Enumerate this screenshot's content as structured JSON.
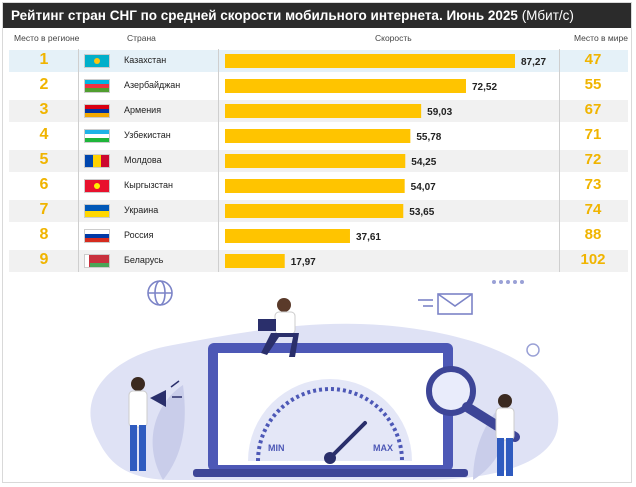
{
  "title": "Рейтинг стран СНГ по средней скорости мобильного интернета. Июнь 2025",
  "title_unit": "(Мбит/с)",
  "columns": {
    "region_rank": "Место в регионе",
    "country": "Страна",
    "speed": "Скорость",
    "world_rank": "Место в мире"
  },
  "rows": [
    {
      "rank": "1",
      "country": "Казахстан",
      "speed": "87,27",
      "world": "47",
      "flag": "kazakhstan"
    },
    {
      "rank": "2",
      "country": "Азербайджан",
      "speed": "72,52",
      "world": "55",
      "flag": "azerbaijan"
    },
    {
      "rank": "3",
      "country": "Армения",
      "speed": "59,03",
      "world": "67",
      "flag": "armenia"
    },
    {
      "rank": "4",
      "country": "Узбекистан",
      "speed": "55,78",
      "world": "71",
      "flag": "uzbekistan"
    },
    {
      "rank": "5",
      "country": "Молдова",
      "speed": "54,25",
      "world": "72",
      "flag": "moldova"
    },
    {
      "rank": "6",
      "country": "Кыргызстан",
      "speed": "54,07",
      "world": "73",
      "flag": "kyrgyzstan"
    },
    {
      "rank": "7",
      "country": "Украина",
      "speed": "53,65",
      "world": "74",
      "flag": "ukraine"
    },
    {
      "rank": "8",
      "country": "Россия",
      "speed": "37,61",
      "world": "88",
      "flag": "russia"
    },
    {
      "rank": "9",
      "country": "Беларусь",
      "speed": "17,97",
      "world": "102",
      "flag": "belarus"
    }
  ],
  "colors": {
    "bar": "#ffc400",
    "rank": "#f0b400",
    "title_bg": "#2b2b2b",
    "highlight_row": "#e5f1f8"
  },
  "illustration": {
    "gauge_min": "MIN",
    "gauge_max": "MAX"
  },
  "chart_data": {
    "type": "bar",
    "orientation": "horizontal",
    "title": "Рейтинг стран СНГ по средней скорости мобильного интернета. Июнь 2025 (Мбит/с)",
    "categories": [
      "Казахстан",
      "Азербайджан",
      "Армения",
      "Узбекистан",
      "Молдова",
      "Кыргызстан",
      "Украина",
      "Россия",
      "Беларусь"
    ],
    "values": [
      87.27,
      72.52,
      59.03,
      55.78,
      54.25,
      54.07,
      53.65,
      37.61,
      17.97
    ],
    "world_rank": [
      47,
      55,
      67,
      71,
      72,
      73,
      74,
      88,
      102
    ],
    "xlim": [
      0,
      100
    ],
    "grid": false,
    "legend": "none"
  }
}
